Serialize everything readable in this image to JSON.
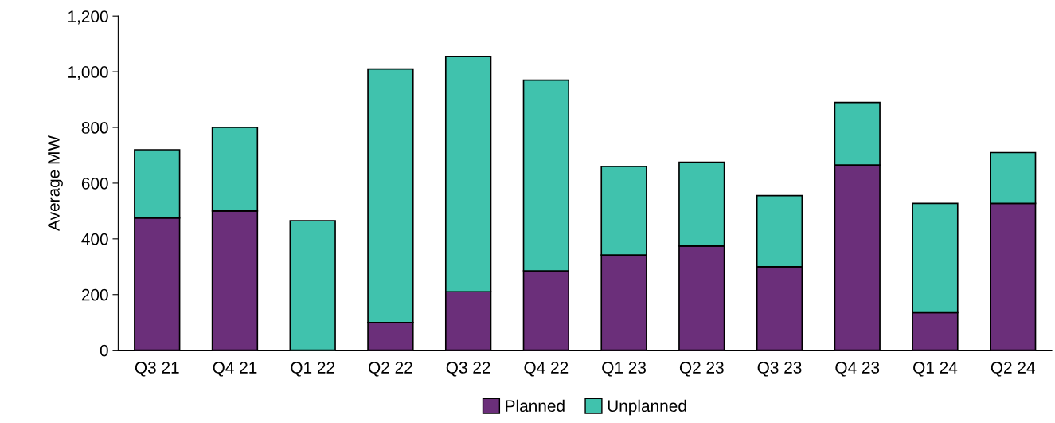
{
  "chart_data": {
    "type": "bar",
    "stacked": true,
    "ylabel": "Average MW",
    "categories": [
      "Q3 21",
      "Q4 21",
      "Q1 22",
      "Q2 22",
      "Q3 22",
      "Q4 22",
      "Q1 23",
      "Q2 23",
      "Q3 23",
      "Q4 23",
      "Q1 24",
      "Q2 24"
    ],
    "series": [
      {
        "name": "Planned",
        "color": "#6b2f7a",
        "values": [
          475,
          500,
          0,
          100,
          210,
          285,
          342,
          374,
          300,
          665,
          135,
          527
        ]
      },
      {
        "name": "Unplanned",
        "color": "#40c2ad",
        "values": [
          245,
          300,
          465,
          910,
          845,
          685,
          318,
          301,
          255,
          225,
          392,
          183
        ]
      }
    ],
    "ylim": [
      0,
      1200
    ],
    "yticks": [
      0,
      {
        "value": 200,
        "label": "200"
      },
      {
        "value": 400,
        "label": "400"
      },
      {
        "value": 600,
        "label": "600"
      },
      {
        "value": 800,
        "label": "800"
      },
      {
        "value": 1000,
        "label": "1,000"
      },
      {
        "value": 1200,
        "label": "1,200"
      }
    ],
    "grid": false,
    "legend": "bottom"
  }
}
